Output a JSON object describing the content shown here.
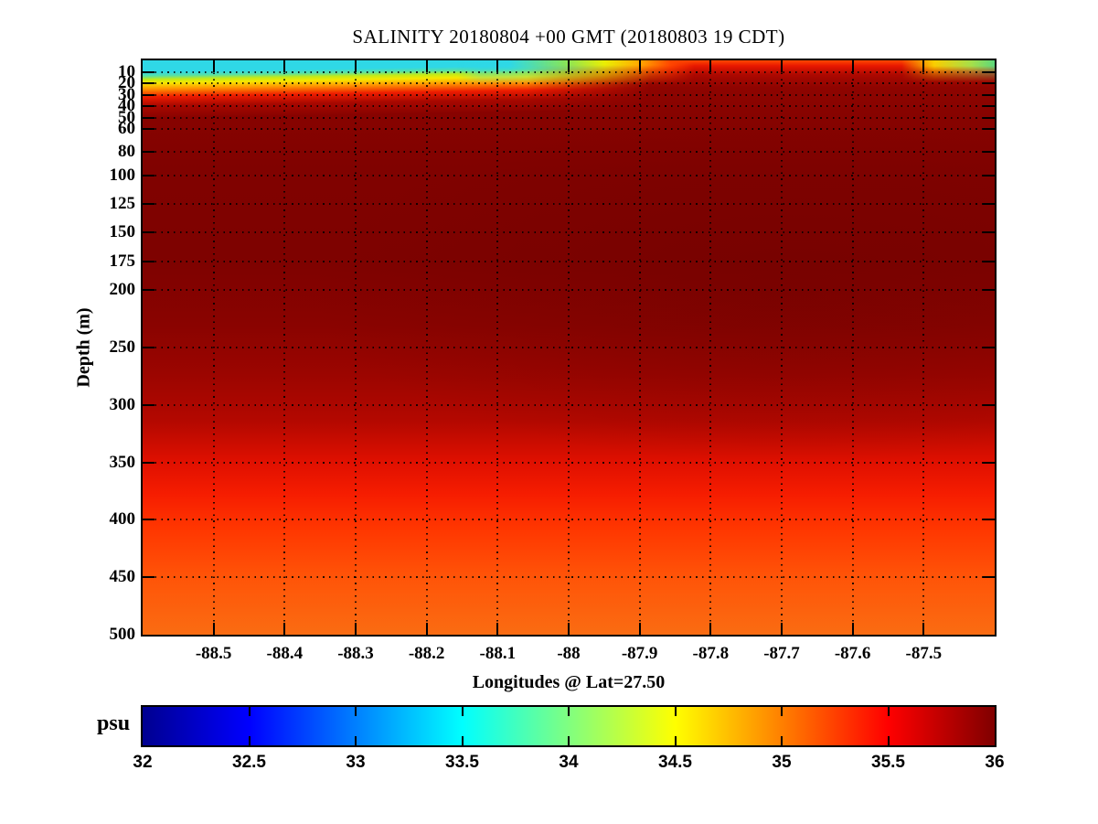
{
  "title": "SALINITY 20180804 +00 GMT (20180803 19 CDT)",
  "axes": {
    "y_label": "Depth (m)",
    "x_label": "Longitudes @ Lat=27.50",
    "y_range": [
      0,
      500
    ],
    "x_range": [
      -88.6,
      -87.4
    ],
    "y_ticks": [
      10,
      20,
      30,
      40,
      50,
      60,
      80,
      100,
      125,
      150,
      175,
      200,
      250,
      300,
      350,
      400,
      450,
      500
    ],
    "y_tick_labels": [
      "10",
      "20",
      "30",
      "40",
      "50",
      "60",
      "80",
      "100",
      "125",
      "150",
      "175",
      "200",
      "250",
      "300",
      "350",
      "400",
      "450",
      "500"
    ],
    "x_ticks": [
      -88.5,
      -88.4,
      -88.3,
      -88.2,
      -88.1,
      -88,
      -87.9,
      -87.8,
      -87.7,
      -87.6,
      -87.5
    ],
    "x_tick_labels": [
      "-88.5",
      "-88.4",
      "-88.3",
      "-88.2",
      "-88.1",
      "-88",
      "-87.9",
      "-87.8",
      "-87.7",
      "-87.6",
      "-87.5"
    ],
    "grid": true
  },
  "colorbar": {
    "unit_label": "psu",
    "range": [
      32,
      36
    ],
    "ticks": [
      32,
      32.5,
      33,
      33.5,
      34,
      34.5,
      35,
      35.5,
      36
    ],
    "tick_labels": [
      "32",
      "32.5",
      "33",
      "33.5",
      "34",
      "34.5",
      "35",
      "35.5",
      "36"
    ],
    "colormap": "jet",
    "color_stops": {
      "32": "#000090",
      "32.5": "#0000ff",
      "33.5": "#00ffff",
      "34": "#80ff80",
      "34.5": "#ffff00",
      "35.5": "#ff0000",
      "36": "#800000"
    }
  },
  "chart_data": {
    "type": "heatmap",
    "title": "SALINITY 20180804 +00 GMT (20180803 19 CDT)",
    "xlabel": "Longitudes @ Lat=27.50",
    "ylabel": "Depth (m)",
    "value_unit": "psu",
    "value_range": [
      32,
      36
    ],
    "x_longitudes": [
      -88.6,
      -88.4,
      -88.2,
      -88.0,
      -87.8,
      -87.6,
      -87.4
    ],
    "y_depths_m": [
      0,
      10,
      20,
      30,
      50,
      75,
      100,
      150,
      200,
      250,
      300,
      350,
      400,
      450,
      500
    ],
    "salinity_psu_grid_rows_by_depth": [
      [
        33.3,
        33.4,
        33.5,
        34.2,
        35.4,
        35.4,
        34.2
      ],
      [
        34.3,
        34.5,
        34.7,
        35.3,
        35.6,
        35.6,
        35.2
      ],
      [
        35.4,
        35.5,
        35.5,
        35.7,
        35.8,
        35.8,
        35.7
      ],
      [
        35.8,
        35.8,
        35.8,
        35.9,
        35.9,
        35.9,
        35.9
      ],
      [
        35.9,
        35.9,
        35.9,
        36.0,
        36.0,
        36.0,
        36.0
      ],
      [
        36.0,
        36.0,
        36.0,
        36.0,
        36.0,
        36.0,
        36.0
      ],
      [
        36.0,
        36.0,
        36.0,
        36.0,
        36.0,
        36.0,
        36.0
      ],
      [
        36.0,
        36.0,
        36.0,
        36.0,
        36.0,
        36.0,
        36.0
      ],
      [
        35.95,
        35.95,
        36.0,
        36.0,
        36.0,
        36.0,
        36.0
      ],
      [
        35.9,
        35.9,
        35.9,
        35.95,
        36.0,
        36.0,
        36.0
      ],
      [
        35.8,
        35.8,
        35.85,
        35.85,
        35.9,
        35.9,
        35.9
      ],
      [
        35.65,
        35.65,
        35.7,
        35.7,
        35.7,
        35.75,
        35.75
      ],
      [
        35.5,
        35.5,
        35.5,
        35.5,
        35.5,
        35.55,
        35.55
      ],
      [
        35.4,
        35.4,
        35.4,
        35.4,
        35.4,
        35.45,
        35.45
      ],
      [
        35.3,
        35.3,
        35.3,
        35.3,
        35.3,
        35.35,
        35.35
      ]
    ],
    "notes": "Low-salinity (~33.4 psu, cyan) surface layer 0-15 m across west half and ~34.2 psu at far east edge; sharp halocline to salinity maximum ~36 psu (dark red) from ~40 m to ~300 m; gradual decrease to ~35.3 psu (orange) at 500 m."
  }
}
